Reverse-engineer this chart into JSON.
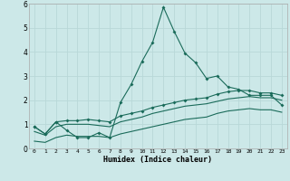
{
  "title": "",
  "xlabel": "Humidex (Indice chaleur)",
  "xlim": [
    -0.5,
    23.5
  ],
  "ylim": [
    0,
    6
  ],
  "xtick_vals": [
    0,
    1,
    2,
    3,
    4,
    5,
    6,
    7,
    8,
    9,
    10,
    11,
    12,
    13,
    14,
    15,
    16,
    17,
    18,
    19,
    20,
    21,
    22,
    23
  ],
  "ytick_vals": [
    0,
    1,
    2,
    3,
    4,
    5,
    6
  ],
  "background_color": "#cce8e8",
  "grid_color": "#b8d8d8",
  "line_color": "#1a6b5a",
  "line1_x": [
    0,
    1,
    2,
    3,
    4,
    5,
    6,
    7,
    8,
    9,
    10,
    11,
    12,
    13,
    14,
    15,
    16,
    17,
    18,
    19,
    20,
    21,
    22,
    23
  ],
  "line1_y": [
    0.9,
    0.6,
    1.1,
    0.75,
    0.45,
    0.45,
    0.65,
    0.45,
    1.9,
    2.65,
    3.6,
    4.4,
    5.85,
    4.85,
    3.95,
    3.55,
    2.9,
    3.0,
    2.55,
    2.45,
    2.2,
    2.2,
    2.2,
    1.8
  ],
  "line2_x": [
    0,
    1,
    2,
    3,
    4,
    5,
    6,
    7,
    8,
    9,
    10,
    11,
    12,
    13,
    14,
    15,
    16,
    17,
    18,
    19,
    20,
    21,
    22,
    23
  ],
  "line2_y": [
    0.9,
    0.6,
    1.1,
    1.15,
    1.15,
    1.2,
    1.15,
    1.1,
    1.35,
    1.45,
    1.55,
    1.7,
    1.8,
    1.9,
    2.0,
    2.05,
    2.1,
    2.25,
    2.35,
    2.4,
    2.4,
    2.3,
    2.3,
    2.2
  ],
  "line3_x": [
    0,
    1,
    2,
    3,
    4,
    5,
    6,
    7,
    8,
    9,
    10,
    11,
    12,
    13,
    14,
    15,
    16,
    17,
    18,
    19,
    20,
    21,
    22,
    23
  ],
  "line3_y": [
    0.7,
    0.55,
    0.9,
    1.0,
    1.0,
    1.0,
    0.95,
    0.9,
    1.1,
    1.2,
    1.3,
    1.45,
    1.55,
    1.65,
    1.75,
    1.8,
    1.85,
    1.95,
    2.05,
    2.1,
    2.15,
    2.1,
    2.1,
    2.0
  ],
  "line4_x": [
    0,
    1,
    2,
    3,
    4,
    5,
    6,
    7,
    8,
    9,
    10,
    11,
    12,
    13,
    14,
    15,
    16,
    17,
    18,
    19,
    20,
    21,
    22,
    23
  ],
  "line4_y": [
    0.3,
    0.25,
    0.45,
    0.55,
    0.5,
    0.5,
    0.5,
    0.45,
    0.6,
    0.7,
    0.8,
    0.9,
    1.0,
    1.1,
    1.2,
    1.25,
    1.3,
    1.45,
    1.55,
    1.6,
    1.65,
    1.6,
    1.6,
    1.5
  ]
}
